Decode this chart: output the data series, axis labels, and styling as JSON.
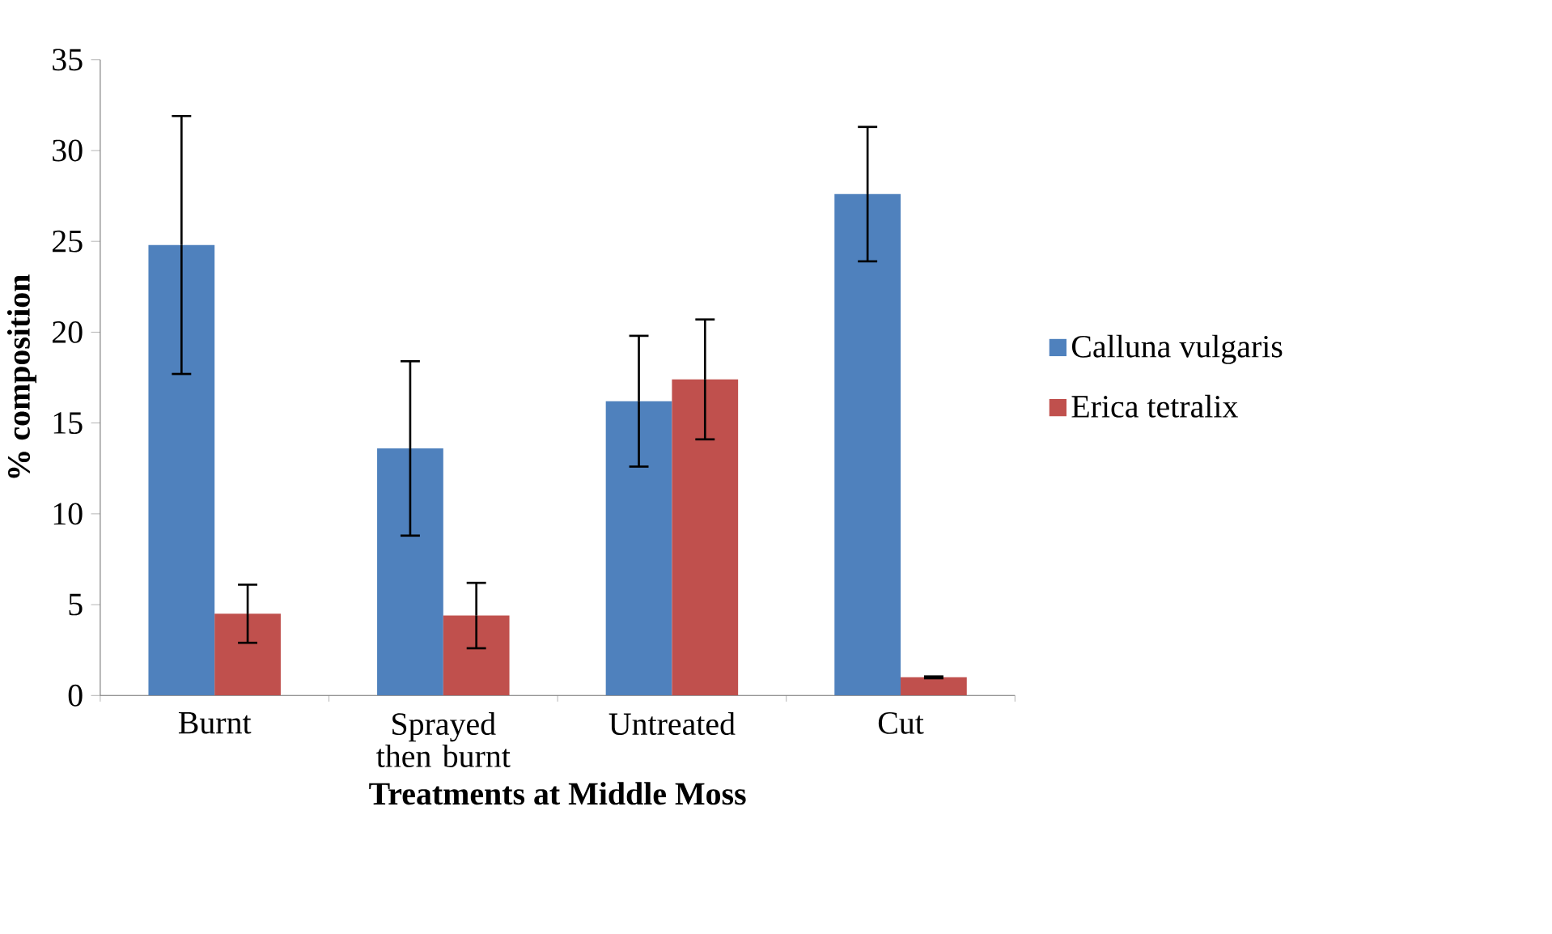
{
  "chart_data": {
    "type": "bar",
    "xlabel": "Treatments at Middle Moss",
    "ylabel": "% composition",
    "categories": [
      "Burnt",
      "Sprayed then burnt",
      "Untreated",
      "Cut"
    ],
    "series": [
      {
        "name": "Calluna vulgaris",
        "color": "#4f81bd",
        "values": [
          24.8,
          13.6,
          16.2,
          27.6
        ],
        "errors": [
          7.1,
          4.8,
          3.6,
          3.7
        ]
      },
      {
        "name": "Erica tetralix",
        "color": "#c0504d",
        "values": [
          4.5,
          4.4,
          17.4,
          1.0
        ],
        "errors": [
          1.6,
          1.8,
          3.3,
          0.05
        ]
      }
    ],
    "ylim": [
      0,
      35
    ],
    "yticks": [
      0,
      5,
      10,
      15,
      20,
      25,
      30,
      35
    ],
    "grid": false,
    "legend": "right"
  }
}
